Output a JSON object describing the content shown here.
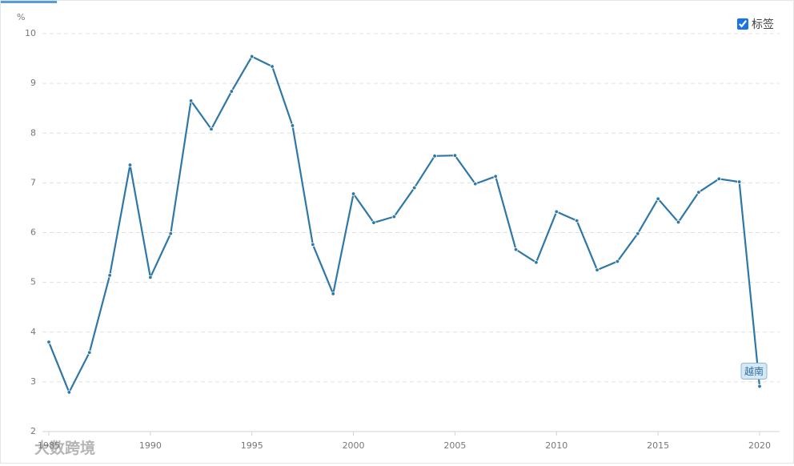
{
  "chart_data": {
    "type": "line",
    "y_label": "%",
    "x": [
      1985,
      1986,
      1987,
      1988,
      1989,
      1990,
      1991,
      1992,
      1993,
      1994,
      1995,
      1996,
      1997,
      1998,
      1999,
      2000,
      2001,
      2002,
      2003,
      2004,
      2005,
      2006,
      2007,
      2008,
      2009,
      2010,
      2011,
      2012,
      2013,
      2014,
      2015,
      2016,
      2017,
      2018,
      2019,
      2020
    ],
    "series": [
      {
        "name": "越南",
        "color": "#2f77a6",
        "values": [
          3.8,
          2.79,
          3.59,
          5.14,
          7.36,
          5.1,
          5.98,
          8.65,
          8.08,
          8.84,
          9.54,
          9.34,
          8.15,
          5.76,
          4.77,
          6.78,
          6.2,
          6.32,
          6.9,
          7.54,
          7.55,
          6.98,
          7.13,
          5.66,
          5.4,
          6.42,
          6.24,
          5.25,
          5.42,
          5.98,
          6.68,
          6.21,
          6.81,
          7.08,
          7.02,
          2.91
        ]
      }
    ],
    "xlim": [
      1985,
      2020
    ],
    "xticks": [
      1985,
      1990,
      1995,
      2000,
      2005,
      2010,
      2015,
      2020
    ],
    "ylim": [
      2,
      10
    ],
    "yticks": [
      2,
      3,
      4,
      5,
      6,
      7,
      8,
      9,
      10
    ],
    "grid": true
  },
  "controls": {
    "label_toggle": "标签"
  },
  "watermark": "大数跨境"
}
